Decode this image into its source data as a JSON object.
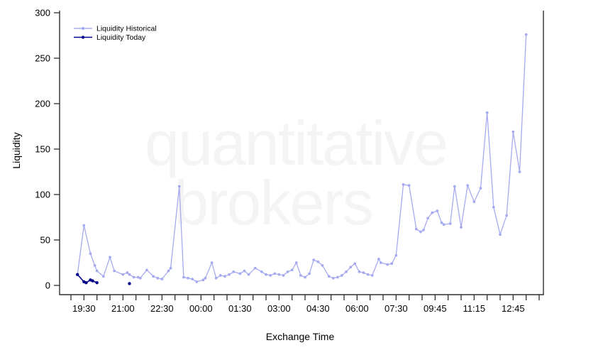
{
  "watermark": {
    "line1": "quantitative",
    "line2": "brokers"
  },
  "chart_data": {
    "type": "line",
    "title": "",
    "xlabel": "Exchange Time",
    "ylabel": "Liquidity",
    "ylim": [
      0,
      300
    ],
    "yticks": [
      0,
      50,
      100,
      150,
      200,
      250,
      300
    ],
    "xtick_labels": [
      "19:30",
      "21:00",
      "22:30",
      "00:00",
      "01:30",
      "03:00",
      "04:30",
      "06:00",
      "07:30",
      "09:45",
      "11:15",
      "12:45"
    ],
    "minor_ticks_between_labels": 2,
    "grid": false,
    "legend_position": "top-left-inside",
    "axis_color": "#2e2e2e",
    "watermark_color": "#f4f4f4",
    "series": [
      {
        "name": "Liquidity Historical",
        "color": "#a6abef",
        "points": [
          [
            "19:15",
            12
          ],
          [
            "19:30",
            66
          ],
          [
            "19:45",
            35
          ],
          [
            "19:55",
            22
          ],
          [
            "20:00",
            16
          ],
          [
            "20:15",
            10
          ],
          [
            "20:30",
            31
          ],
          [
            "20:40",
            16
          ],
          [
            "21:00",
            12
          ],
          [
            "21:10",
            14
          ],
          [
            "21:15",
            12
          ],
          [
            "21:25",
            9
          ],
          [
            "21:35",
            9
          ],
          [
            "21:40",
            8
          ],
          [
            "21:55",
            17
          ],
          [
            "22:10",
            10
          ],
          [
            "22:20",
            8
          ],
          [
            "22:30",
            7
          ],
          [
            "22:45",
            16
          ],
          [
            "22:50",
            19
          ],
          [
            "23:10",
            109
          ],
          [
            "23:20",
            9
          ],
          [
            "23:30",
            8
          ],
          [
            "23:40",
            7
          ],
          [
            "23:50",
            4
          ],
          [
            "00:05",
            6
          ],
          [
            "00:10",
            8
          ],
          [
            "00:25",
            25
          ],
          [
            "00:35",
            8
          ],
          [
            "00:45",
            11
          ],
          [
            "00:55",
            10
          ],
          [
            "01:05",
            12
          ],
          [
            "01:15",
            15
          ],
          [
            "01:30",
            13
          ],
          [
            "01:40",
            16
          ],
          [
            "01:50",
            12
          ],
          [
            "02:05",
            19
          ],
          [
            "02:20",
            15
          ],
          [
            "02:30",
            12
          ],
          [
            "02:40",
            11
          ],
          [
            "02:50",
            13
          ],
          [
            "03:00",
            12
          ],
          [
            "03:10",
            11
          ],
          [
            "03:20",
            15
          ],
          [
            "03:30",
            17
          ],
          [
            "03:40",
            25
          ],
          [
            "03:50",
            11
          ],
          [
            "04:00",
            9
          ],
          [
            "04:10",
            13
          ],
          [
            "04:20",
            28
          ],
          [
            "04:30",
            26
          ],
          [
            "04:40",
            22
          ],
          [
            "04:55",
            10
          ],
          [
            "05:05",
            8
          ],
          [
            "05:15",
            9
          ],
          [
            "05:25",
            11
          ],
          [
            "05:35",
            15
          ],
          [
            "05:45",
            20
          ],
          [
            "05:55",
            24
          ],
          [
            "06:05",
            15
          ],
          [
            "06:15",
            14
          ],
          [
            "06:25",
            12
          ],
          [
            "06:35",
            11
          ],
          [
            "06:50",
            29
          ],
          [
            "06:55",
            25
          ],
          [
            "07:10",
            23
          ],
          [
            "07:20",
            24
          ],
          [
            "07:30",
            33
          ],
          [
            "07:55",
            111
          ],
          [
            "08:15",
            110
          ],
          [
            "08:40",
            62
          ],
          [
            "08:55",
            59
          ],
          [
            "09:05",
            61
          ],
          [
            "09:20",
            74
          ],
          [
            "09:35",
            80
          ],
          [
            "09:50",
            82
          ],
          [
            "10:00",
            69
          ],
          [
            "10:05",
            67
          ],
          [
            "10:20",
            68
          ],
          [
            "10:30",
            109
          ],
          [
            "10:45",
            64
          ],
          [
            "11:00",
            110
          ],
          [
            "11:15",
            92
          ],
          [
            "11:30",
            107
          ],
          [
            "11:45",
            190
          ],
          [
            "12:00",
            86
          ],
          [
            "12:15",
            56
          ],
          [
            "12:30",
            77
          ],
          [
            "12:45",
            169
          ],
          [
            "13:00",
            125
          ],
          [
            "13:15",
            276
          ]
        ]
      },
      {
        "name": "Liquidity Today",
        "color": "#00008b",
        "segments": [
          [
            [
              "19:15",
              12
            ],
            [
              "19:30",
              4
            ],
            [
              "19:35",
              3
            ],
            [
              "19:45",
              6
            ],
            [
              "19:50",
              5
            ],
            [
              "20:00",
              3
            ]
          ],
          [
            [
              "21:15",
              2
            ]
          ]
        ]
      }
    ]
  }
}
